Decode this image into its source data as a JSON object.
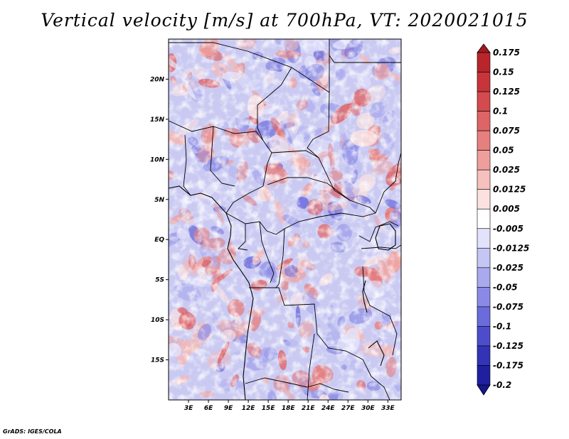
{
  "title": "Vertical velocity [m/s] at 700hPa, VT: 2020021015",
  "credit": "GrADS: IGES/COLA",
  "chart_data": {
    "type": "heatmap",
    "variable": "Vertical velocity",
    "units": "m/s",
    "level": "700hPa",
    "valid_time": "2020021015",
    "lon_range": [
      0,
      35
    ],
    "lat_range": [
      -20,
      25
    ],
    "x_ticks": [
      {
        "value": 3,
        "label": "3E"
      },
      {
        "value": 6,
        "label": "6E"
      },
      {
        "value": 9,
        "label": "9E"
      },
      {
        "value": 12,
        "label": "12E"
      },
      {
        "value": 15,
        "label": "15E"
      },
      {
        "value": 18,
        "label": "18E"
      },
      {
        "value": 21,
        "label": "21E"
      },
      {
        "value": 24,
        "label": "24E"
      },
      {
        "value": 27,
        "label": "27E"
      },
      {
        "value": 30,
        "label": "30E"
      },
      {
        "value": 33,
        "label": "33E"
      }
    ],
    "y_ticks": [
      {
        "value": 20,
        "label": "20N"
      },
      {
        "value": 15,
        "label": "15N"
      },
      {
        "value": 10,
        "label": "10N"
      },
      {
        "value": 5,
        "label": "5N"
      },
      {
        "value": 0,
        "label": "EQ"
      },
      {
        "value": -5,
        "label": "5S"
      },
      {
        "value": -10,
        "label": "10S"
      },
      {
        "value": -15,
        "label": "15S"
      }
    ],
    "colorbar": {
      "labels": [
        "0.175",
        "0.15",
        "0.125",
        "0.1",
        "0.075",
        "0.05",
        "0.025",
        "0.0125",
        "0.005",
        "-0.005",
        "-0.0125",
        "-0.025",
        "-0.05",
        "-0.075",
        "-0.1",
        "-0.125",
        "-0.175",
        "-0.2"
      ],
      "colors": [
        "#a01a20",
        "#b8252b",
        "#c8343a",
        "#d44a4e",
        "#de6466",
        "#e6807f",
        "#ee9f9c",
        "#f5c0bd",
        "#fbe2e0",
        "#ffffff",
        "#e2e2fb",
        "#c6c6f4",
        "#a9a9ee",
        "#8a8ae6",
        "#6b6bdc",
        "#4d4dcc",
        "#3333b8",
        "#1f1fa0",
        "#15158c"
      ]
    }
  }
}
